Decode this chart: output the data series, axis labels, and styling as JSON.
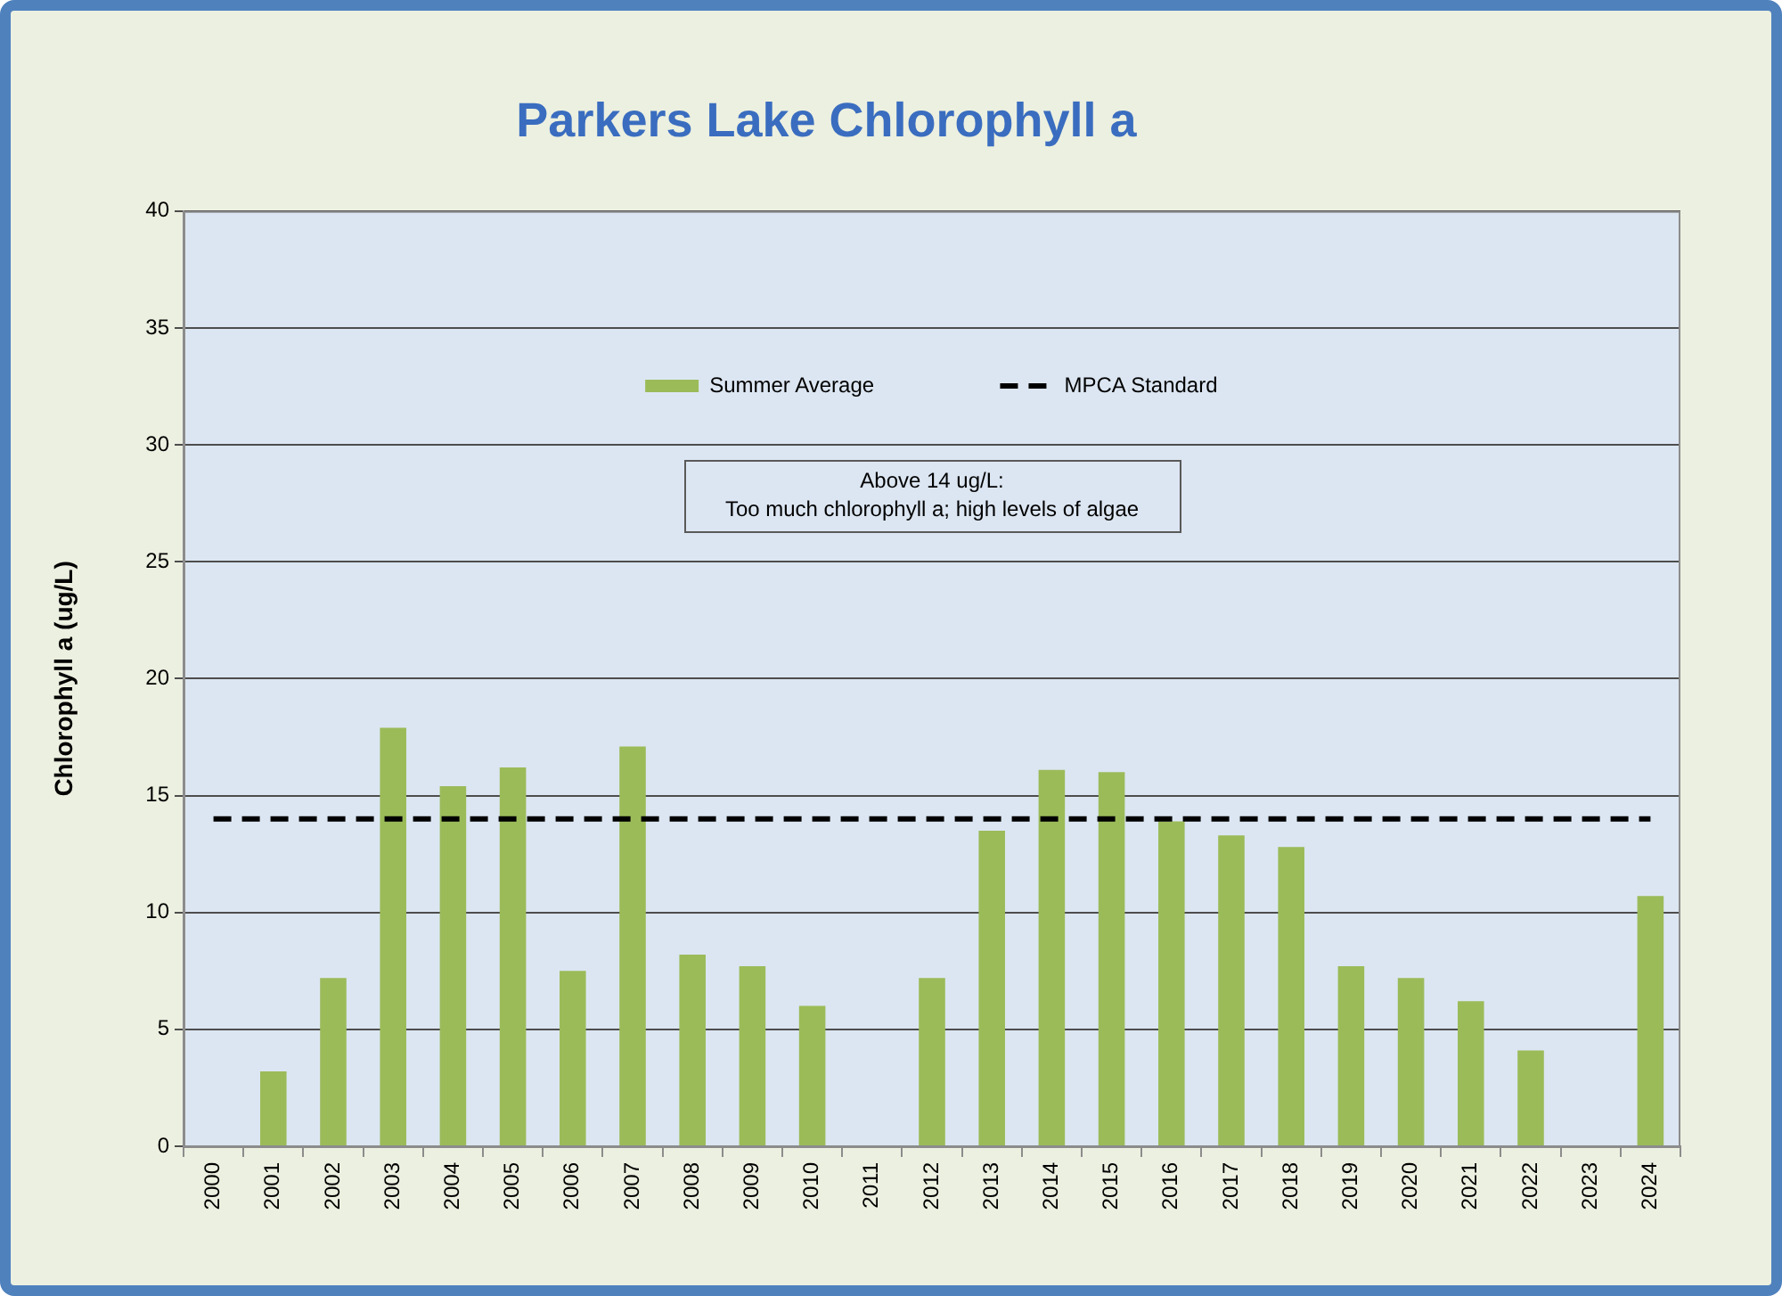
{
  "chart_data": {
    "type": "bar",
    "title": "Parkers Lake Chlorophyll a",
    "ylabel": "Chlorophyll a (ug/L)",
    "categories": [
      "2000",
      "2001",
      "2002",
      "2003",
      "2004",
      "2005",
      "2006",
      "2007",
      "2008",
      "2009",
      "2010",
      "2011",
      "2012",
      "2013",
      "2014",
      "2015",
      "2016",
      "2017",
      "2018",
      "2019",
      "2020",
      "2021",
      "2022",
      "2023",
      "2024"
    ],
    "series": [
      {
        "name": "Summer Average",
        "color": "#9bbb59",
        "values": [
          null,
          3.2,
          7.2,
          17.9,
          15.4,
          16.2,
          7.5,
          17.1,
          8.2,
          7.7,
          6.0,
          null,
          7.2,
          13.5,
          16.1,
          16.0,
          13.9,
          13.3,
          12.8,
          7.7,
          7.2,
          6.2,
          4.1,
          null,
          10.7
        ]
      },
      {
        "name": "MPCA Standard",
        "type": "line",
        "color": "#000000",
        "line_style": "dashed",
        "marker": "none",
        "values": [
          14,
          14,
          14,
          14,
          14,
          14,
          14,
          14,
          14,
          14,
          14,
          14,
          14,
          14,
          14,
          14,
          14,
          14,
          14,
          14,
          14,
          14,
          14,
          14,
          14
        ]
      }
    ],
    "ylim": [
      0,
      40
    ],
    "yticks": [
      0,
      5,
      10,
      15,
      20,
      25,
      30,
      35,
      40
    ],
    "grid": "y",
    "legend": "top",
    "annotations": [
      "Above 14 ug/L:\nToo much chlorophyll a; high levels of algae"
    ]
  }
}
